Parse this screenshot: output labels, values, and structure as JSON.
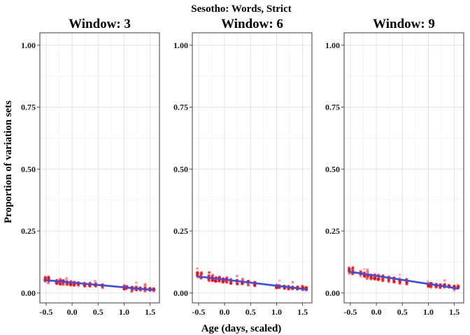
{
  "chart_data": {
    "type": "scatter",
    "title": "Sesotho: Words, Strict",
    "xlabel": "Age (days, scaled)",
    "ylabel": "Proportion of variation sets",
    "xlim": [
      -0.62,
      1.68
    ],
    "ylim": [
      -0.04,
      1.05
    ],
    "x_ticks": [
      "-0.5",
      "0.0",
      "0.5",
      "1.0",
      "1.5"
    ],
    "y_ticks": [
      "0.00",
      "0.25",
      "0.50",
      "0.75",
      "1.00"
    ],
    "grid": true,
    "colors": {
      "points": "#ff0000",
      "fit_line": "#3050f0",
      "ci_band": "#999999"
    },
    "ages": [
      -0.52,
      -0.45,
      -0.3,
      -0.23,
      -0.17,
      -0.1,
      -0.03,
      0.04,
      0.12,
      0.24,
      0.34,
      0.45,
      0.58,
      1.0,
      1.05,
      1.15,
      1.23,
      1.31,
      1.4,
      1.5,
      1.57
    ],
    "facets": [
      {
        "label": "Window: 3",
        "fit": {
          "x": [
            -0.52,
            1.57
          ],
          "y": [
            0.052,
            0.012
          ]
        },
        "means": [
          0.055,
          0.054,
          0.045,
          0.043,
          0.042,
          0.041,
          0.04,
          0.038,
          0.036,
          0.034,
          0.033,
          0.032,
          0.028,
          0.022,
          0.021,
          0.019,
          0.018,
          0.016,
          0.015,
          0.014,
          0.013
        ]
      },
      {
        "label": "Window: 6",
        "fit": {
          "x": [
            -0.52,
            1.57
          ],
          "y": [
            0.067,
            0.015
          ]
        },
        "means": [
          0.072,
          0.071,
          0.06,
          0.058,
          0.055,
          0.053,
          0.052,
          0.05,
          0.047,
          0.044,
          0.042,
          0.04,
          0.036,
          0.026,
          0.025,
          0.023,
          0.022,
          0.02,
          0.019,
          0.018,
          0.017
        ]
      },
      {
        "label": "Window: 9",
        "fit": {
          "x": [
            -0.52,
            1.57
          ],
          "y": [
            0.086,
            0.018
          ]
        },
        "means": [
          0.092,
          0.09,
          0.077,
          0.074,
          0.07,
          0.068,
          0.066,
          0.063,
          0.06,
          0.056,
          0.053,
          0.05,
          0.045,
          0.033,
          0.032,
          0.03,
          0.028,
          0.026,
          0.025,
          0.023,
          0.022
        ]
      }
    ]
  }
}
